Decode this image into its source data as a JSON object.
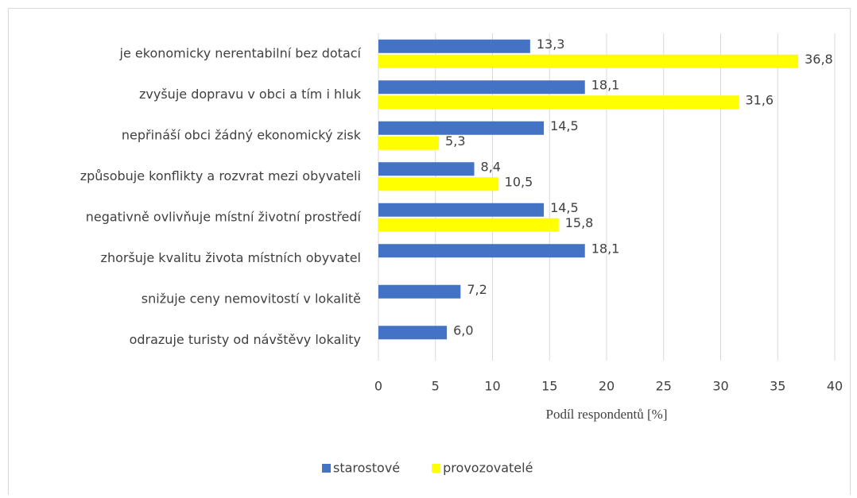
{
  "chart_data": {
    "type": "barh",
    "categories": [
      "je ekonomicky nerentabilní bez dotací",
      "zvyšuje dopravu v obci a tím i hluk",
      "nepřináší obci žádný ekonomický zisk",
      "způsobuje konflikty a rozvrat mezi obyvateli",
      "negativně ovlivňuje místní životní prostředí",
      "zhoršuje kvalitu života místních obyvatel",
      "snižuje ceny nemovitostí v lokalitě",
      "odrazuje turisty od návštěvy lokality"
    ],
    "series": [
      {
        "name": "starostové",
        "color": "#4472c4",
        "values": [
          13.3,
          18.1,
          14.5,
          8.4,
          14.5,
          18.1,
          7.2,
          6.0
        ],
        "value_labels": [
          "13,3",
          "18,1",
          "14,5",
          "8,4",
          "14,5",
          "18,1",
          "7,2",
          "6,0"
        ]
      },
      {
        "name": "provozovatelé",
        "color": "#ffff00",
        "values": [
          36.8,
          31.6,
          5.3,
          10.5,
          15.8,
          null,
          null,
          null
        ],
        "value_labels": [
          "36,8",
          "31,6",
          "5,3",
          "10,5",
          "15,8",
          null,
          null,
          null
        ]
      }
    ],
    "xlabel": "Podíl respondentů [%]",
    "xlim": [
      0,
      40
    ],
    "xticks": [
      0,
      5,
      10,
      15,
      20,
      25,
      30,
      35,
      40
    ],
    "grid": true,
    "legend": "bottom"
  }
}
